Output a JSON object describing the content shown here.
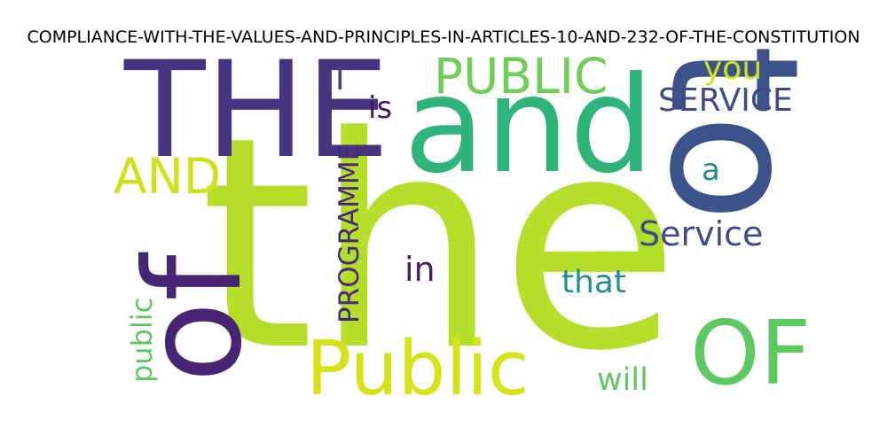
{
  "title": "COMPLIANCE-WITH-THE-VALUES-AND-PRINCIPLES-IN-ARTICLES-10-AND-232-OF-THE-CONSTITUTION",
  "words": [
    {
      "text": "the",
      "color": "#b5de2b"
    },
    {
      "text": "THE",
      "color": "#463480"
    },
    {
      "text": "and",
      "color": "#2fb47c"
    },
    {
      "text": "to",
      "color": "#3b528b"
    },
    {
      "text": "of",
      "color": "#482475"
    },
    {
      "text": "Public",
      "color": "#d8e219"
    },
    {
      "text": "OF",
      "color": "#5ec962"
    },
    {
      "text": "PUBLIC",
      "color": "#6ece58"
    },
    {
      "text": "AND",
      "color": "#d0e11c"
    },
    {
      "text": "Service",
      "color": "#3e4a89"
    },
    {
      "text": "SERVICE",
      "color": "#3e4c8a"
    },
    {
      "text": "PROGRAMME",
      "color": "#482878"
    },
    {
      "text": "you",
      "color": "#d2e21b"
    },
    {
      "text": "I",
      "color": "#424086"
    },
    {
      "text": "is",
      "color": "#471365"
    },
    {
      "text": "a",
      "color": "#228b8d"
    },
    {
      "text": "in",
      "color": "#481a6c"
    },
    {
      "text": "that",
      "color": "#21918c"
    },
    {
      "text": "public",
      "color": "#5ec962"
    },
    {
      "text": "will",
      "color": "#5ec962"
    }
  ]
}
